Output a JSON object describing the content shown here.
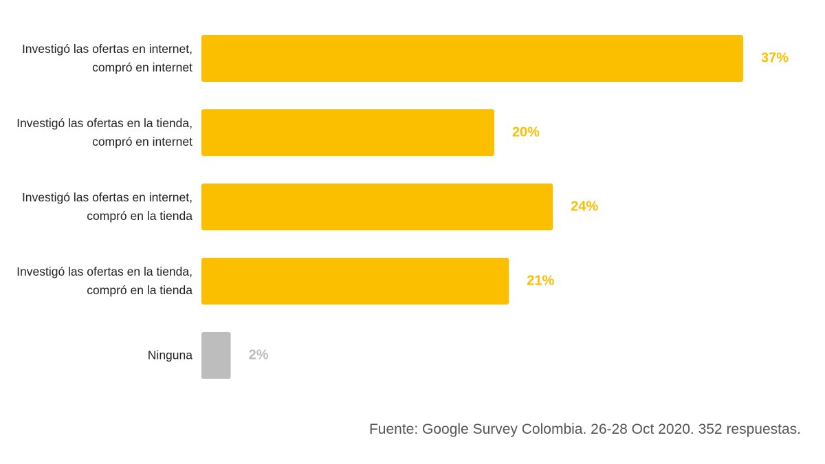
{
  "chart_data": {
    "type": "bar",
    "orientation": "horizontal",
    "categories": [
      "Investigó las ofertas en internet, compró en internet",
      "Investigó las ofertas en la tienda, compró en internet",
      "Investigó las ofertas en internet, compró en la tienda",
      "Investigó las ofertas en la tienda, compró en la tienda",
      "Ninguna"
    ],
    "values": [
      37,
      20,
      24,
      21,
      2
    ],
    "value_labels": [
      "37%",
      "20%",
      "24%",
      "21%",
      "2%"
    ],
    "colors": [
      "#fbbf00",
      "#fbbf00",
      "#fbbf00",
      "#fbbf00",
      "#bdbdbd"
    ],
    "source": "Fuente: Google Survey Colombia. 26-28 Oct 2020. 352 respuestas."
  }
}
